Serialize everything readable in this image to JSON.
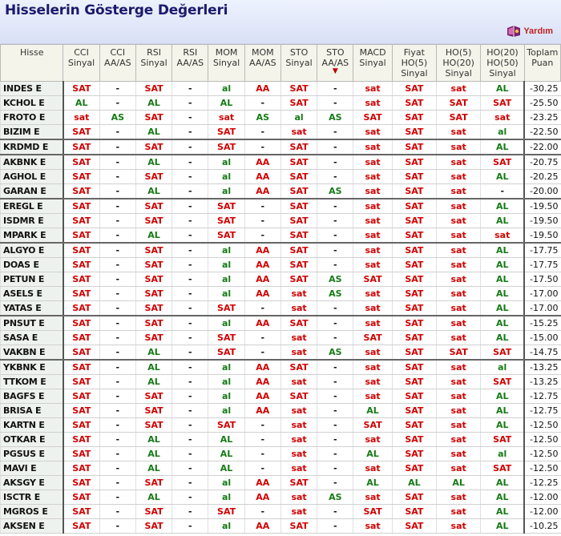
{
  "title": "Hisselerin Gösterge Değerleri",
  "help": {
    "label": "Yardım",
    "icon": "help-book-icon"
  },
  "colors": {
    "sell": "#d00000",
    "buy": "#157a15",
    "header_bg": "#f4f4ea",
    "title": "#1b1b6b"
  },
  "columns": [
    {
      "line1": "Hisse",
      "line2": "",
      "line3": ""
    },
    {
      "line1": "CCI",
      "line2": "Sinyal",
      "line3": ""
    },
    {
      "line1": "CCI",
      "line2": "AA/AS",
      "line3": ""
    },
    {
      "line1": "RSI",
      "line2": "Sinyal",
      "line3": ""
    },
    {
      "line1": "RSI",
      "line2": "AA/AS",
      "line3": ""
    },
    {
      "line1": "MOM",
      "line2": "Sinyal",
      "line3": ""
    },
    {
      "line1": "MOM",
      "line2": "AA/AS",
      "line3": ""
    },
    {
      "line1": "STO",
      "line2": "Sinyal",
      "line3": ""
    },
    {
      "line1": "STO",
      "line2": "AA/AS",
      "line3": "▼"
    },
    {
      "line1": "MACD",
      "line2": "Sinyal",
      "line3": ""
    },
    {
      "line1": "Fiyat",
      "line2": "HO(5)",
      "line3": "Sinyal"
    },
    {
      "line1": "HO(5)",
      "line2": "HO(20)",
      "line3": "Sinyal"
    },
    {
      "line1": "HO(20)",
      "line2": "HO(50)",
      "line3": "Sinyal"
    },
    {
      "line1": "Toplam",
      "line2": "Puan",
      "line3": ""
    }
  ],
  "rows": [
    [
      "INDES E",
      "SAT",
      "-",
      "SAT",
      "-",
      "al",
      "AA",
      "SAT",
      "-",
      "sat",
      "SAT",
      "sat",
      "AL",
      "-30.25"
    ],
    [
      "KCHOL E",
      "AL",
      "-",
      "AL",
      "-",
      "AL",
      "-",
      "SAT",
      "-",
      "sat",
      "SAT",
      "SAT",
      "SAT",
      "-25.50"
    ],
    [
      "FROTO E",
      "sat",
      "AS",
      "SAT",
      "-",
      "sat",
      "AS",
      "al",
      "AS",
      "SAT",
      "SAT",
      "SAT",
      "sat",
      "-23.25"
    ],
    [
      "BIZIM E",
      "SAT",
      "-",
      "AL",
      "-",
      "SAT",
      "-",
      "sat",
      "-",
      "sat",
      "SAT",
      "sat",
      "al",
      "-22.50"
    ],
    [
      "KRDMD E",
      "SAT",
      "-",
      "SAT",
      "-",
      "SAT",
      "-",
      "SAT",
      "-",
      "sat",
      "SAT",
      "sat",
      "AL",
      "-22.00"
    ],
    [
      "AKBNK E",
      "SAT",
      "-",
      "AL",
      "-",
      "al",
      "AA",
      "SAT",
      "-",
      "sat",
      "SAT",
      "sat",
      "SAT",
      "-20.75"
    ],
    [
      "AGHOL E",
      "SAT",
      "-",
      "SAT",
      "-",
      "al",
      "AA",
      "SAT",
      "-",
      "sat",
      "SAT",
      "sat",
      "AL",
      "-20.25"
    ],
    [
      "GARAN E",
      "SAT",
      "-",
      "AL",
      "-",
      "al",
      "AA",
      "SAT",
      "AS",
      "sat",
      "SAT",
      "sat",
      "-",
      "-20.00"
    ],
    [
      "EREGL E",
      "SAT",
      "-",
      "SAT",
      "-",
      "SAT",
      "-",
      "SAT",
      "-",
      "sat",
      "SAT",
      "sat",
      "AL",
      "-19.50"
    ],
    [
      "ISDMR E",
      "SAT",
      "-",
      "SAT",
      "-",
      "SAT",
      "-",
      "SAT",
      "-",
      "sat",
      "SAT",
      "sat",
      "AL",
      "-19.50"
    ],
    [
      "MPARK E",
      "SAT",
      "-",
      "AL",
      "-",
      "SAT",
      "-",
      "SAT",
      "-",
      "sat",
      "SAT",
      "sat",
      "sat",
      "-19.50"
    ],
    [
      "ALGYO E",
      "SAT",
      "-",
      "SAT",
      "-",
      "al",
      "AA",
      "SAT",
      "-",
      "sat",
      "SAT",
      "sat",
      "AL",
      "-17.75"
    ],
    [
      "DOAS E",
      "SAT",
      "-",
      "SAT",
      "-",
      "al",
      "AA",
      "SAT",
      "-",
      "sat",
      "SAT",
      "sat",
      "AL",
      "-17.75"
    ],
    [
      "PETUN E",
      "SAT",
      "-",
      "SAT",
      "-",
      "al",
      "AA",
      "SAT",
      "AS",
      "SAT",
      "SAT",
      "sat",
      "AL",
      "-17.50"
    ],
    [
      "ASELS E",
      "SAT",
      "-",
      "SAT",
      "-",
      "al",
      "AA",
      "sat",
      "AS",
      "sat",
      "SAT",
      "sat",
      "AL",
      "-17.00"
    ],
    [
      "YATAS E",
      "SAT",
      "-",
      "SAT",
      "-",
      "SAT",
      "-",
      "sat",
      "-",
      "sat",
      "SAT",
      "sat",
      "AL",
      "-17.00"
    ],
    [
      "PNSUT E",
      "SAT",
      "-",
      "SAT",
      "-",
      "al",
      "AA",
      "SAT",
      "-",
      "sat",
      "SAT",
      "sat",
      "AL",
      "-15.25"
    ],
    [
      "SASA E",
      "SAT",
      "-",
      "SAT",
      "-",
      "SAT",
      "-",
      "sat",
      "-",
      "SAT",
      "SAT",
      "sat",
      "AL",
      "-15.00"
    ],
    [
      "VAKBN E",
      "SAT",
      "-",
      "AL",
      "-",
      "SAT",
      "-",
      "sat",
      "AS",
      "sat",
      "SAT",
      "SAT",
      "SAT",
      "-14.75"
    ],
    [
      "YKBNK E",
      "SAT",
      "-",
      "AL",
      "-",
      "al",
      "AA",
      "SAT",
      "-",
      "sat",
      "SAT",
      "sat",
      "al",
      "-13.25"
    ],
    [
      "TTKOM E",
      "SAT",
      "-",
      "AL",
      "-",
      "al",
      "AA",
      "sat",
      "-",
      "sat",
      "SAT",
      "sat",
      "SAT",
      "-13.25"
    ],
    [
      "BAGFS E",
      "SAT",
      "-",
      "SAT",
      "-",
      "al",
      "AA",
      "SAT",
      "-",
      "sat",
      "SAT",
      "sat",
      "AL",
      "-12.75"
    ],
    [
      "BRISA E",
      "SAT",
      "-",
      "SAT",
      "-",
      "al",
      "AA",
      "sat",
      "-",
      "AL",
      "SAT",
      "sat",
      "AL",
      "-12.75"
    ],
    [
      "KARTN E",
      "SAT",
      "-",
      "SAT",
      "-",
      "SAT",
      "-",
      "sat",
      "-",
      "SAT",
      "SAT",
      "sat",
      "AL",
      "-12.50"
    ],
    [
      "OTKAR E",
      "SAT",
      "-",
      "AL",
      "-",
      "AL",
      "-",
      "sat",
      "-",
      "sat",
      "SAT",
      "sat",
      "SAT",
      "-12.50"
    ],
    [
      "PGSUS E",
      "SAT",
      "-",
      "AL",
      "-",
      "AL",
      "-",
      "sat",
      "-",
      "AL",
      "SAT",
      "sat",
      "al",
      "-12.50"
    ],
    [
      "MAVI E",
      "SAT",
      "-",
      "AL",
      "-",
      "AL",
      "-",
      "sat",
      "-",
      "sat",
      "SAT",
      "sat",
      "SAT",
      "-12.50"
    ],
    [
      "AKSGY E",
      "SAT",
      "-",
      "SAT",
      "-",
      "al",
      "AA",
      "SAT",
      "-",
      "AL",
      "AL",
      "AL",
      "AL",
      "-12.25"
    ],
    [
      "ISCTR E",
      "SAT",
      "-",
      "AL",
      "-",
      "al",
      "AA",
      "sat",
      "AS",
      "sat",
      "SAT",
      "sat",
      "AL",
      "-12.00"
    ],
    [
      "MGROS E",
      "SAT",
      "-",
      "SAT",
      "-",
      "SAT",
      "-",
      "sat",
      "-",
      "SAT",
      "SAT",
      "sat",
      "AL",
      "-12.00"
    ],
    [
      "AKSEN E",
      "SAT",
      "-",
      "SAT",
      "-",
      "al",
      "AA",
      "SAT",
      "-",
      "sat",
      "SAT",
      "sat",
      "AL",
      "-10.25"
    ]
  ]
}
